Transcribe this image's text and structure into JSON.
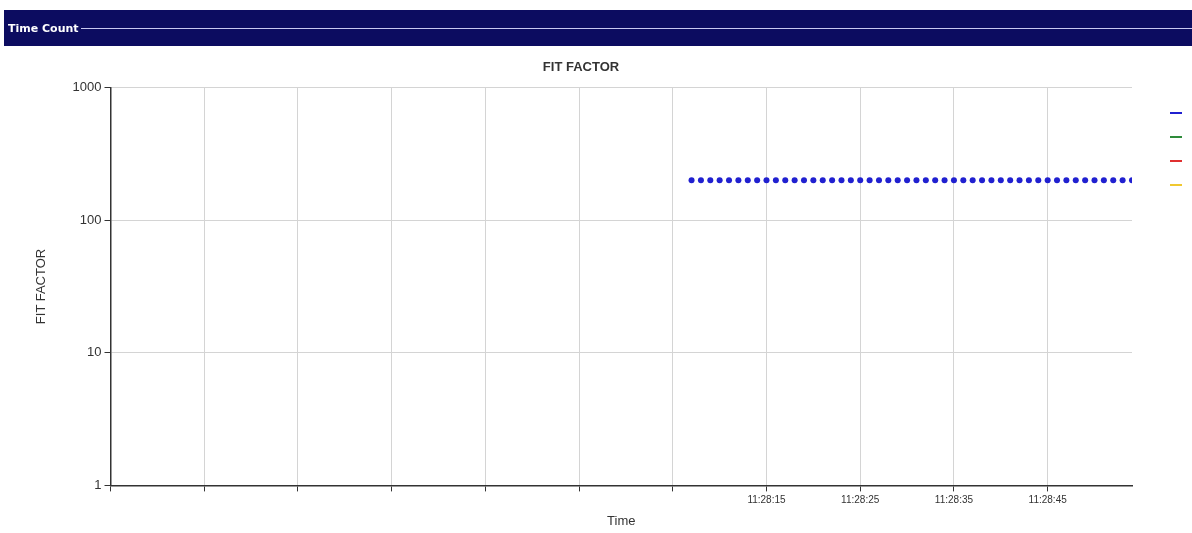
{
  "chart_data": {
    "type": "scatter",
    "title": "FIT FACTOR",
    "xlabel": "Time",
    "ylabel": "FIT FACTOR",
    "annotations": [
      "Time Count"
    ],
    "xlim": [
      11.451389,
      11.481667
    ],
    "xticks": [
      {
        "value": 11.451389,
        "label": null
      },
      {
        "value": 11.454167,
        "label": null
      },
      {
        "value": 11.456944,
        "label": null
      },
      {
        "value": 11.459722,
        "label": null
      },
      {
        "value": 11.4625,
        "label": null
      },
      {
        "value": 11.465278,
        "label": null
      },
      {
        "value": 11.468056,
        "label": null
      },
      {
        "value": 11.470833,
        "label": "11:28:15"
      },
      {
        "value": 11.473611,
        "label": "11:28:25"
      },
      {
        "value": 11.476389,
        "label": "11:28:35"
      },
      {
        "value": 11.479167,
        "label": "11:28:45"
      }
    ],
    "ylim": [
      1,
      1000
    ],
    "yticks": [
      1,
      10,
      100,
      1000
    ],
    "log": "y",
    "grid": true,
    "marker": "circle",
    "series": [
      {
        "color": "#2020d0",
        "x": [
          11.468611,
          11.468889,
          11.469167,
          11.469444,
          11.469722,
          11.47,
          11.470278,
          11.470556,
          11.470833,
          11.471111,
          11.471389,
          11.471667,
          11.471944,
          11.472222,
          11.4725,
          11.472778,
          11.473056,
          11.473333,
          11.473611,
          11.473889,
          11.474167,
          11.474444,
          11.474722,
          11.475,
          11.475278,
          11.475556,
          11.475833,
          11.476111,
          11.476389,
          11.476667,
          11.476944,
          11.477222,
          11.4775,
          11.477778,
          11.478056,
          11.478333,
          11.478611,
          11.478889,
          11.479167,
          11.479444,
          11.479722,
          11.48,
          11.480278,
          11.480556,
          11.480833,
          11.481111,
          11.481389,
          11.481667
        ],
        "values": [
          200,
          200,
          200,
          200,
          200,
          200,
          200,
          200,
          200,
          200,
          200,
          200,
          200,
          200,
          200,
          200,
          200,
          200,
          200,
          200,
          200,
          200,
          200,
          200,
          200,
          200,
          200,
          200,
          200,
          200,
          200,
          200,
          200,
          200,
          200,
          200,
          200,
          200,
          200,
          200,
          200,
          200,
          200,
          200,
          200,
          200,
          200,
          200
        ]
      }
    ]
  }
}
